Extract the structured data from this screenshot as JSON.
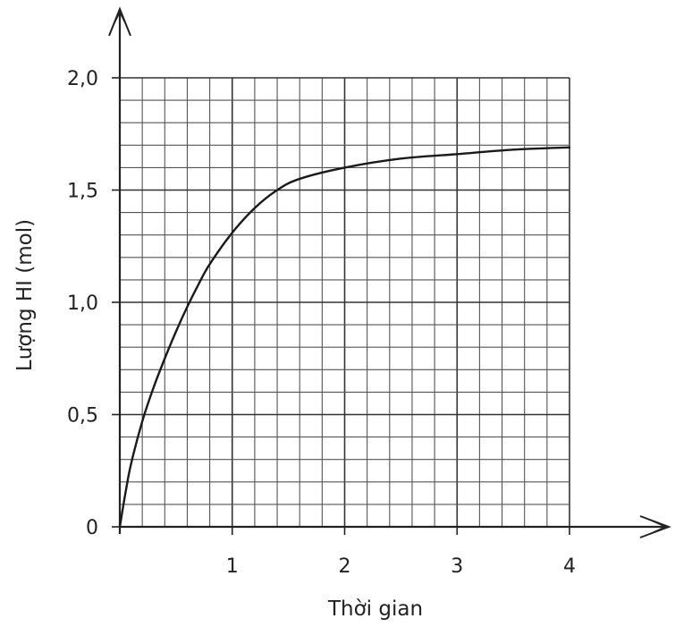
{
  "chart_data": {
    "type": "line",
    "title": "",
    "xlabel": "Thời gian",
    "ylabel": "Lượng HI (mol)",
    "xlim": [
      0,
      4
    ],
    "ylim": [
      0,
      2.0
    ],
    "x_ticks": [
      {
        "value": 1,
        "label": "1"
      },
      {
        "value": 2,
        "label": "2"
      },
      {
        "value": 3,
        "label": "3"
      },
      {
        "value": 4,
        "label": "4"
      }
    ],
    "y_ticks": [
      {
        "value": 0,
        "label": "0"
      },
      {
        "value": 0.5,
        "label": "0,5"
      },
      {
        "value": 1.0,
        "label": "1,0"
      },
      {
        "value": 1.5,
        "label": "1,5"
      },
      {
        "value": 2.0,
        "label": "2,0"
      }
    ],
    "grid": true,
    "series": [
      {
        "name": "",
        "color": "#1a1a1a",
        "x": [
          0,
          0.05,
          0.1,
          0.2,
          0.3,
          0.4,
          0.5,
          0.6,
          0.7,
          0.8,
          1.0,
          1.2,
          1.4,
          1.6,
          2.0,
          2.5,
          3.0,
          3.5,
          4.0
        ],
        "y": [
          0,
          0.15,
          0.28,
          0.47,
          0.62,
          0.75,
          0.87,
          0.98,
          1.08,
          1.17,
          1.31,
          1.42,
          1.5,
          1.55,
          1.6,
          1.64,
          1.66,
          1.68,
          1.69
        ]
      }
    ]
  }
}
